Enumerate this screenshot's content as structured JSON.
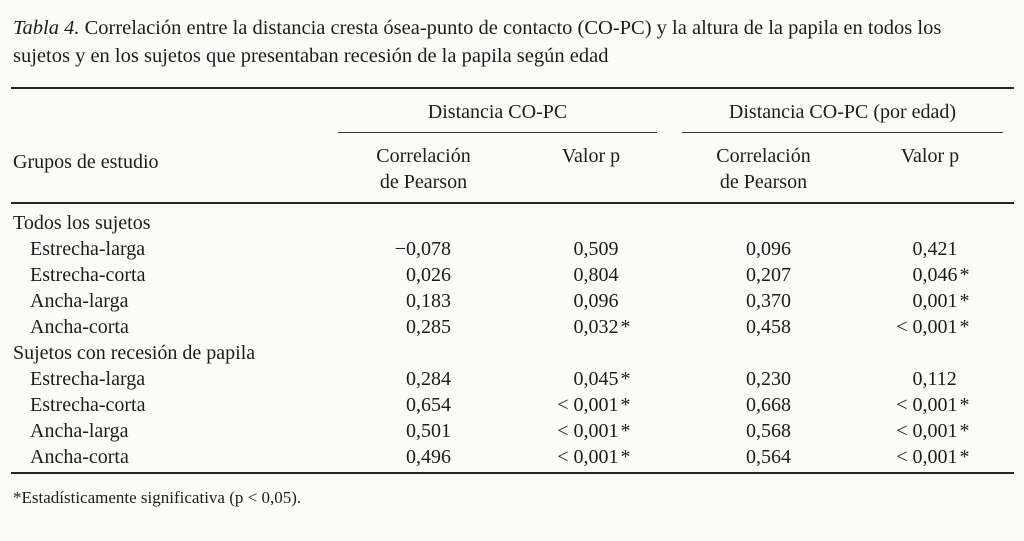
{
  "colors": {
    "ink": "#1c1c1c",
    "background": "#fbfbf9",
    "rule": "#262626"
  },
  "caption": {
    "label": "Tabla 4.",
    "line1": "Correlación entre la distancia cresta ósea-punto de contacto (CO-PC) y la altura de la papila en todos los",
    "line2": "sujetos y en los sujetos que presentaban recesión de la papila según edad"
  },
  "table": {
    "row_header": "Grupos de estudio",
    "groups": [
      {
        "label": "Distancia CO-PC"
      },
      {
        "label": "Distancia CO-PC (por edad)"
      }
    ],
    "columns": [
      {
        "line1": "Correlación",
        "line2": "de Pearson"
      },
      {
        "line1": "Valor p",
        "line2": ""
      },
      {
        "line1": "Correlación",
        "line2": "de Pearson"
      },
      {
        "line1": "Valor p",
        "line2": ""
      }
    ],
    "sections": [
      {
        "label": "Todos los sujetos",
        "rows": [
          {
            "label": "Estrecha-larga",
            "values": [
              "−0,078",
              "0,509",
              "0,096",
              "0,421"
            ]
          },
          {
            "label": "Estrecha-corta",
            "values": [
              "0,026",
              "0,804",
              "0,207",
              "0,046*"
            ]
          },
          {
            "label": "Ancha-larga",
            "values": [
              "0,183",
              "0,096",
              "0,370",
              "0,001*"
            ]
          },
          {
            "label": "Ancha-corta",
            "values": [
              "0,285",
              "0,032*",
              "0,458",
              "< 0,001*"
            ]
          }
        ]
      },
      {
        "label": "Sujetos con recesión de papila",
        "rows": [
          {
            "label": "Estrecha-larga",
            "values": [
              "0,284",
              "0,045*",
              "0,230",
              "0,112"
            ]
          },
          {
            "label": "Estrecha-corta",
            "values": [
              "0,654",
              "< 0,001*",
              "0,668",
              "< 0,001*"
            ]
          },
          {
            "label": "Ancha-larga",
            "values": [
              "0,501",
              "< 0,001*",
              "0,568",
              "< 0,001*"
            ]
          },
          {
            "label": "Ancha-corta",
            "values": [
              "0,496",
              "< 0,001*",
              "0,564",
              "< 0,001*"
            ]
          }
        ]
      }
    ]
  },
  "footnote": "*Estadísticamente significativa (p < 0,05)."
}
